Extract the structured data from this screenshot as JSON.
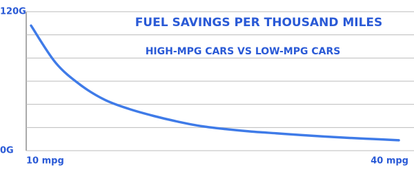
{
  "chart_data": {
    "type": "line",
    "title": "FUEL SAVINGS PER THOUSAND MILES",
    "subtitle": "HIGH-MPG CARS VS LOW-MPG CARS",
    "x": [
      10,
      12,
      14,
      16,
      18,
      20,
      22,
      24,
      26,
      28,
      30,
      32,
      34,
      36,
      38,
      40
    ],
    "series": [
      {
        "name": null,
        "color": "#3f7be8",
        "values": [
          108,
          76,
          57,
          44,
          36,
          30,
          25,
          21,
          18.5,
          16.5,
          15,
          13.5,
          12.2,
          11,
          10,
          9
        ]
      }
    ],
    "xlim": [
      10,
      40
    ],
    "xticks": [
      {
        "value": 10,
        "label": "10 mpg"
      },
      {
        "value": 40,
        "label": "40 mpg"
      }
    ],
    "ylim": [
      0,
      120
    ],
    "yticks": [
      {
        "value": 0,
        "label": "0G"
      },
      {
        "value": 20,
        "label": null
      },
      {
        "value": 40,
        "label": null
      },
      {
        "value": 60,
        "label": null
      },
      {
        "value": 80,
        "label": null
      },
      {
        "value": 100,
        "label": null
      },
      {
        "value": 120,
        "label": "120G"
      }
    ],
    "grid": true
  }
}
